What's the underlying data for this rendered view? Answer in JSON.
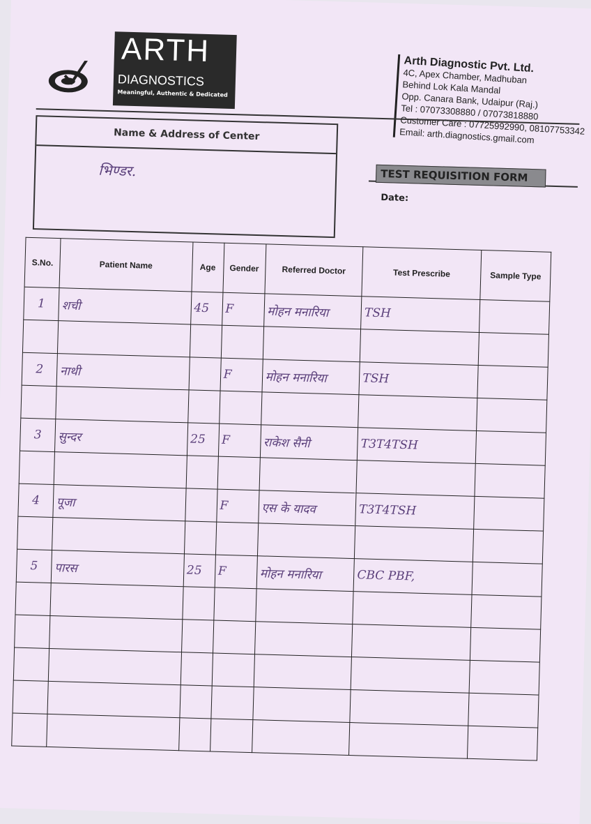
{
  "logo": {
    "brand": "ARTH",
    "sub": "DIAGNOSTICS",
    "tagline": "Meaningful, Authentic & Dedicated"
  },
  "company": {
    "name": "Arth Diagnostic Pvt. Ltd.",
    "address": [
      "4C, Apex Chamber, Madhuban",
      "Behind Lok Kala Mandal",
      "Opp. Canara Bank, Udaipur (Raj.)"
    ],
    "tel": "Tel : 07073308880 / 07073818880",
    "care": "Customer Care : 07725992990, 08107753342",
    "email": "Email: arth.diagnostics.gmail.com"
  },
  "form_title": "TEST REQUISITION FORM",
  "date_label": "Date:",
  "center": {
    "label": "Name & Address of Center",
    "value": "भिण्डर."
  },
  "table": {
    "headers": [
      "S.No.",
      "Patient Name",
      "Age",
      "Gender",
      "Referred Doctor",
      "Test Prescribe",
      "Sample Type"
    ],
    "rows": [
      {
        "sno": "1",
        "name": "शची",
        "age": "45",
        "gender": "F",
        "doctor": "मोहन मनारिया",
        "test": "TSH",
        "sample": ""
      },
      {
        "sno": "2",
        "name": "नाथी",
        "age": "",
        "gender": "F",
        "doctor": "मोहन मनारिया",
        "test": "TSH",
        "sample": ""
      },
      {
        "sno": "3",
        "name": "सुन्दर",
        "age": "25",
        "gender": "F",
        "doctor": "राकेश सैनी",
        "test": "T3T4TSH",
        "sample": ""
      },
      {
        "sno": "4",
        "name": "पूजा",
        "age": "",
        "gender": "F",
        "doctor": "एस के यादव",
        "test": "T3T4TSH",
        "sample": ""
      },
      {
        "sno": "5",
        "name": "पारस",
        "age": "25",
        "gender": "F",
        "doctor": "मोहन मनारिया",
        "test": "CBC PBF,",
        "sample": ""
      }
    ]
  }
}
